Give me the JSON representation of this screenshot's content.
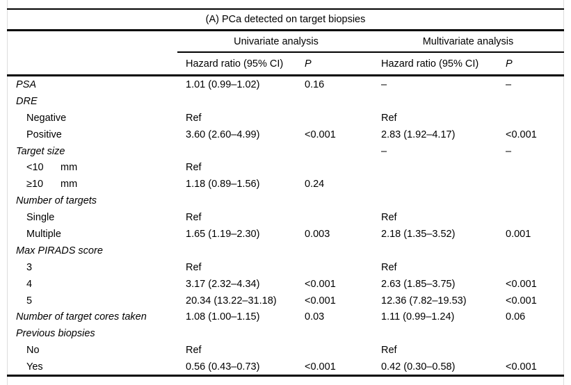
{
  "colors": {
    "background": "#ffffff",
    "text": "#000000",
    "rule": "#000000",
    "frame": "#dcdcdc"
  },
  "table": {
    "title": "(A) PCa detected on target biopsies",
    "col_groups": [
      {
        "label": "Univariate analysis"
      },
      {
        "label": "Multivariate analysis"
      }
    ],
    "sub_headers": [
      "Hazard ratio (95% CI)",
      "P",
      "Hazard ratio (95% CI)",
      "P"
    ],
    "rows": [
      {
        "label": "PSA",
        "type": "category",
        "cells": [
          "1.01 (0.99–1.02)",
          "0.16",
          "–",
          "–"
        ]
      },
      {
        "label": "DRE",
        "type": "category",
        "cells": [
          "",
          "",
          "",
          ""
        ]
      },
      {
        "label": "Negative",
        "type": "sub",
        "cells": [
          "Ref",
          "",
          "Ref",
          ""
        ]
      },
      {
        "label": "Positive",
        "type": "sub",
        "cells": [
          "3.60 (2.60–4.99)",
          "<0.001",
          "2.83 (1.92–4.17)",
          "<0.001"
        ]
      },
      {
        "label": "Target size",
        "type": "category",
        "cells": [
          "",
          "",
          "–",
          "–"
        ]
      },
      {
        "label": "<10",
        "unit": "mm",
        "type": "sub",
        "cells": [
          "Ref",
          "",
          "",
          ""
        ]
      },
      {
        "label": "≥10",
        "unit": "mm",
        "type": "sub",
        "cells": [
          "1.18 (0.89–1.56)",
          "0.24",
          "",
          ""
        ]
      },
      {
        "label": "Number of targets",
        "type": "category",
        "cells": [
          "",
          "",
          "",
          ""
        ]
      },
      {
        "label": "Single",
        "type": "sub",
        "cells": [
          "Ref",
          "",
          "Ref",
          ""
        ]
      },
      {
        "label": "Multiple",
        "type": "sub",
        "cells": [
          "1.65 (1.19–2.30)",
          "0.003",
          "2.18 (1.35–3.52)",
          "0.001"
        ]
      },
      {
        "label": "Max PIRADS score",
        "type": "category",
        "cells": [
          "",
          "",
          "",
          ""
        ]
      },
      {
        "label": "3",
        "type": "sub",
        "cells": [
          "Ref",
          "",
          "Ref",
          ""
        ]
      },
      {
        "label": "4",
        "type": "sub",
        "cells": [
          "3.17 (2.32–4.34)",
          "<0.001",
          "2.63 (1.85–3.75)",
          "<0.001"
        ]
      },
      {
        "label": "5",
        "type": "sub",
        "cells": [
          "20.34 (13.22–31.18)",
          "<0.001",
          "12.36 (7.82–19.53)",
          "<0.001"
        ]
      },
      {
        "label": "Number of target cores taken",
        "type": "category",
        "cells": [
          "1.08 (1.00–1.15)",
          "0.03",
          "1.11 (0.99–1.24)",
          "0.06"
        ]
      },
      {
        "label": "Previous biopsies",
        "type": "category",
        "cells": [
          "",
          "",
          "",
          ""
        ]
      },
      {
        "label": "No",
        "type": "sub",
        "cells": [
          "Ref",
          "",
          "Ref",
          ""
        ]
      },
      {
        "label": "Yes",
        "type": "sub",
        "cells": [
          "0.56 (0.43–0.73)",
          "<0.001",
          "0.42 (0.30–0.58)",
          "<0.001"
        ]
      }
    ]
  }
}
